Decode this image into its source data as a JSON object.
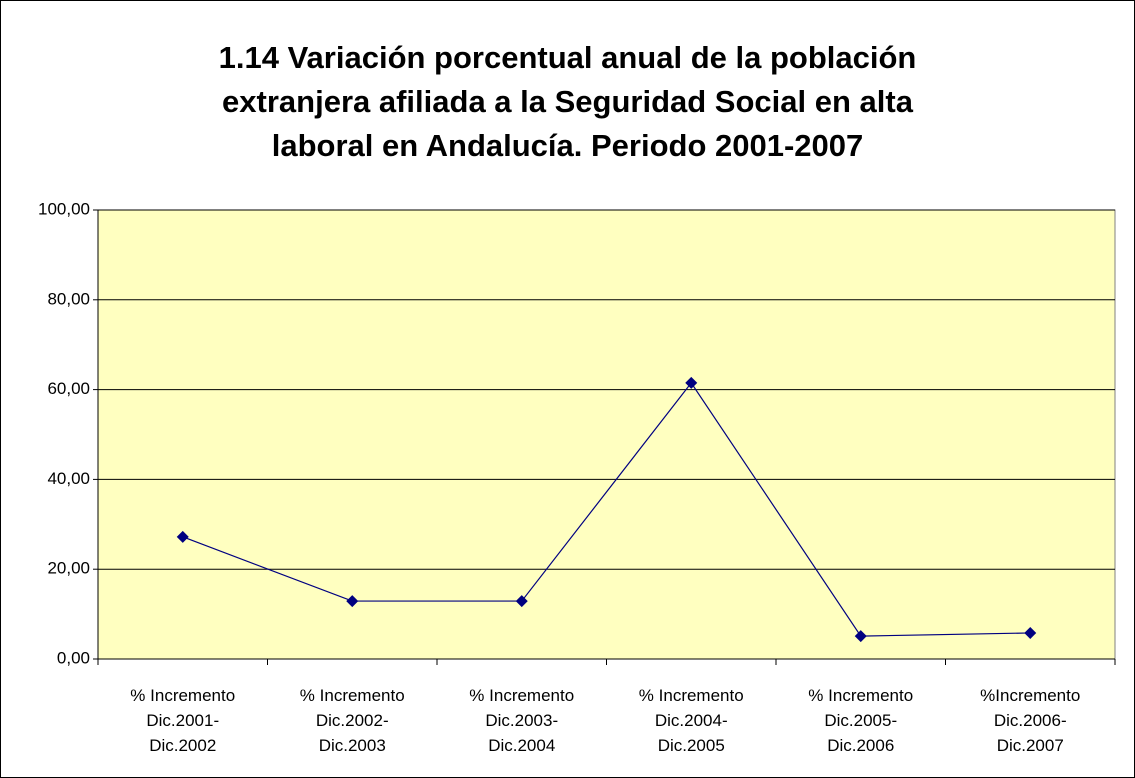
{
  "chart_data": {
    "type": "line",
    "title": "1.14 Variación porcentual anual de la población\nextranjera afiliada a la Seguridad Social en alta\nlaboral en Andalucía. Periodo 2001-2007",
    "categories": [
      "% Incremento\nDic.2001-\nDic.2002",
      "% Incremento\nDic.2002-\nDic.2003",
      "% Incremento\nDic.2003-\nDic.2004",
      "% Incremento\nDic.2004-\nDic.2005",
      "% Incremento\nDic.2005-\nDic.2006",
      "%Incremento\nDic.2006-\nDic.2007"
    ],
    "values": [
      27.2,
      12.9,
      12.9,
      61.5,
      5.1,
      5.8
    ],
    "color": "#000080",
    "plot_background": "#ffffc0",
    "ylim": [
      0,
      100
    ],
    "yticks": [
      {
        "value": 0,
        "label": "0,00"
      },
      {
        "value": 20,
        "label": "20,00"
      },
      {
        "value": 40,
        "label": "40,00"
      },
      {
        "value": 60,
        "label": "60,00"
      },
      {
        "value": 80,
        "label": "80,00"
      },
      {
        "value": 100,
        "label": "100,00"
      }
    ],
    "grid": true
  }
}
